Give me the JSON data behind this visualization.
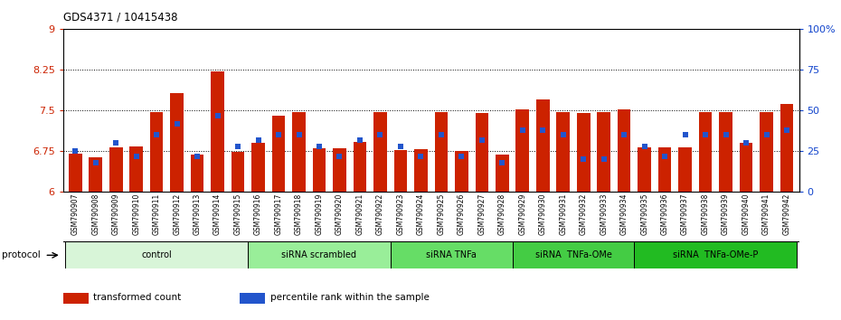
{
  "title": "GDS4371 / 10415438",
  "samples": [
    "GSM790907",
    "GSM790908",
    "GSM790909",
    "GSM790910",
    "GSM790911",
    "GSM790912",
    "GSM790913",
    "GSM790914",
    "GSM790915",
    "GSM790916",
    "GSM790917",
    "GSM790918",
    "GSM790919",
    "GSM790920",
    "GSM790921",
    "GSM790922",
    "GSM790923",
    "GSM790924",
    "GSM790925",
    "GSM790926",
    "GSM790927",
    "GSM790928",
    "GSM790929",
    "GSM790930",
    "GSM790931",
    "GSM790932",
    "GSM790933",
    "GSM790934",
    "GSM790935",
    "GSM790936",
    "GSM790937",
    "GSM790938",
    "GSM790939",
    "GSM790940",
    "GSM790941",
    "GSM790942"
  ],
  "transformed_count": [
    6.7,
    6.63,
    6.82,
    6.83,
    7.47,
    7.82,
    6.68,
    8.22,
    6.73,
    6.9,
    7.4,
    7.47,
    6.81,
    6.81,
    6.92,
    7.47,
    6.77,
    6.78,
    7.47,
    6.75,
    7.45,
    6.69,
    7.52,
    7.7,
    7.47,
    7.45,
    7.47,
    7.52,
    6.82,
    6.82,
    6.82,
    7.47,
    7.47,
    6.9,
    7.47,
    7.62
  ],
  "percentile_rank": [
    25,
    18,
    30,
    22,
    35,
    42,
    22,
    47,
    28,
    32,
    35,
    35,
    28,
    22,
    32,
    35,
    28,
    22,
    35,
    22,
    32,
    18,
    38,
    38,
    35,
    20,
    20,
    35,
    28,
    22,
    35,
    35,
    35,
    30,
    35,
    38
  ],
  "bar_color": "#cc2200",
  "dot_color": "#2255cc",
  "ylim_left": [
    6.0,
    9.0
  ],
  "ylim_right": [
    0,
    100
  ],
  "yticks_left": [
    6.0,
    6.75,
    7.5,
    8.25,
    9.0
  ],
  "yticks_right": [
    0,
    25,
    50,
    75,
    100
  ],
  "ytick_labels_left": [
    "6",
    "6.75",
    "7.5",
    "8.25",
    "9"
  ],
  "ytick_labels_right": [
    "0",
    "25",
    "50",
    "75",
    "100%"
  ],
  "hlines": [
    6.75,
    7.5,
    8.25
  ],
  "groups": [
    {
      "label": "control",
      "start": 0,
      "end": 9,
      "color": "#d8f5d8"
    },
    {
      "label": "siRNA scrambled",
      "start": 9,
      "end": 16,
      "color": "#99ee99"
    },
    {
      "label": "siRNA TNFa",
      "start": 16,
      "end": 22,
      "color": "#66dd66"
    },
    {
      "label": "siRNA  TNFa-OMe",
      "start": 22,
      "end": 28,
      "color": "#44cc44"
    },
    {
      "label": "siRNA  TNFa-OMe-P",
      "start": 28,
      "end": 36,
      "color": "#22bb22"
    }
  ],
  "protocol_label": "protocol",
  "legend_items": [
    {
      "label": "transformed count",
      "color": "#cc2200"
    },
    {
      "label": "percentile rank within the sample",
      "color": "#2255cc"
    }
  ]
}
